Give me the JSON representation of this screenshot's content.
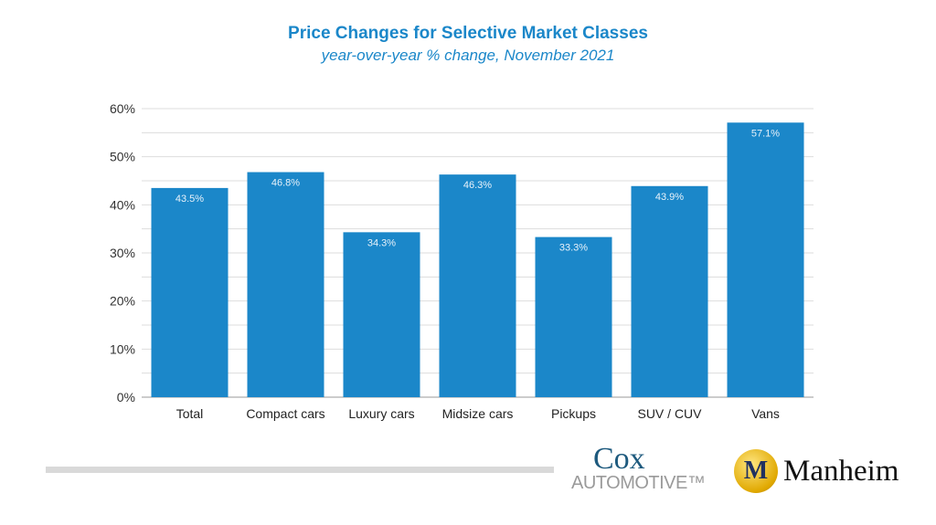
{
  "chart_data": {
    "type": "bar",
    "title": "Price Changes for Selective Market Classes",
    "subtitle": "year-over-year % change, November 2021",
    "categories": [
      "Total",
      "Compact cars",
      "Luxury cars",
      "Midsize cars",
      "Pickups",
      "SUV / CUV",
      "Vans"
    ],
    "values": [
      43.5,
      46.8,
      34.3,
      46.3,
      33.3,
      43.9,
      57.1
    ],
    "data_labels": [
      "43.5%",
      "46.8%",
      "34.3%",
      "46.3%",
      "33.3%",
      "43.9%",
      "57.1%"
    ],
    "ylim": [
      0,
      60
    ],
    "yticks": [
      "0%",
      "10%",
      "20%",
      "30%",
      "40%",
      "50%",
      "60%"
    ],
    "grid": true,
    "bar_color": "#1b87c9",
    "title_color": "#1b87c9"
  },
  "logos": {
    "cox_top": "Cox",
    "cox_bottom": "AUTOMOTIVE™",
    "manheim": "Manheim",
    "manheim_mark": "M"
  }
}
